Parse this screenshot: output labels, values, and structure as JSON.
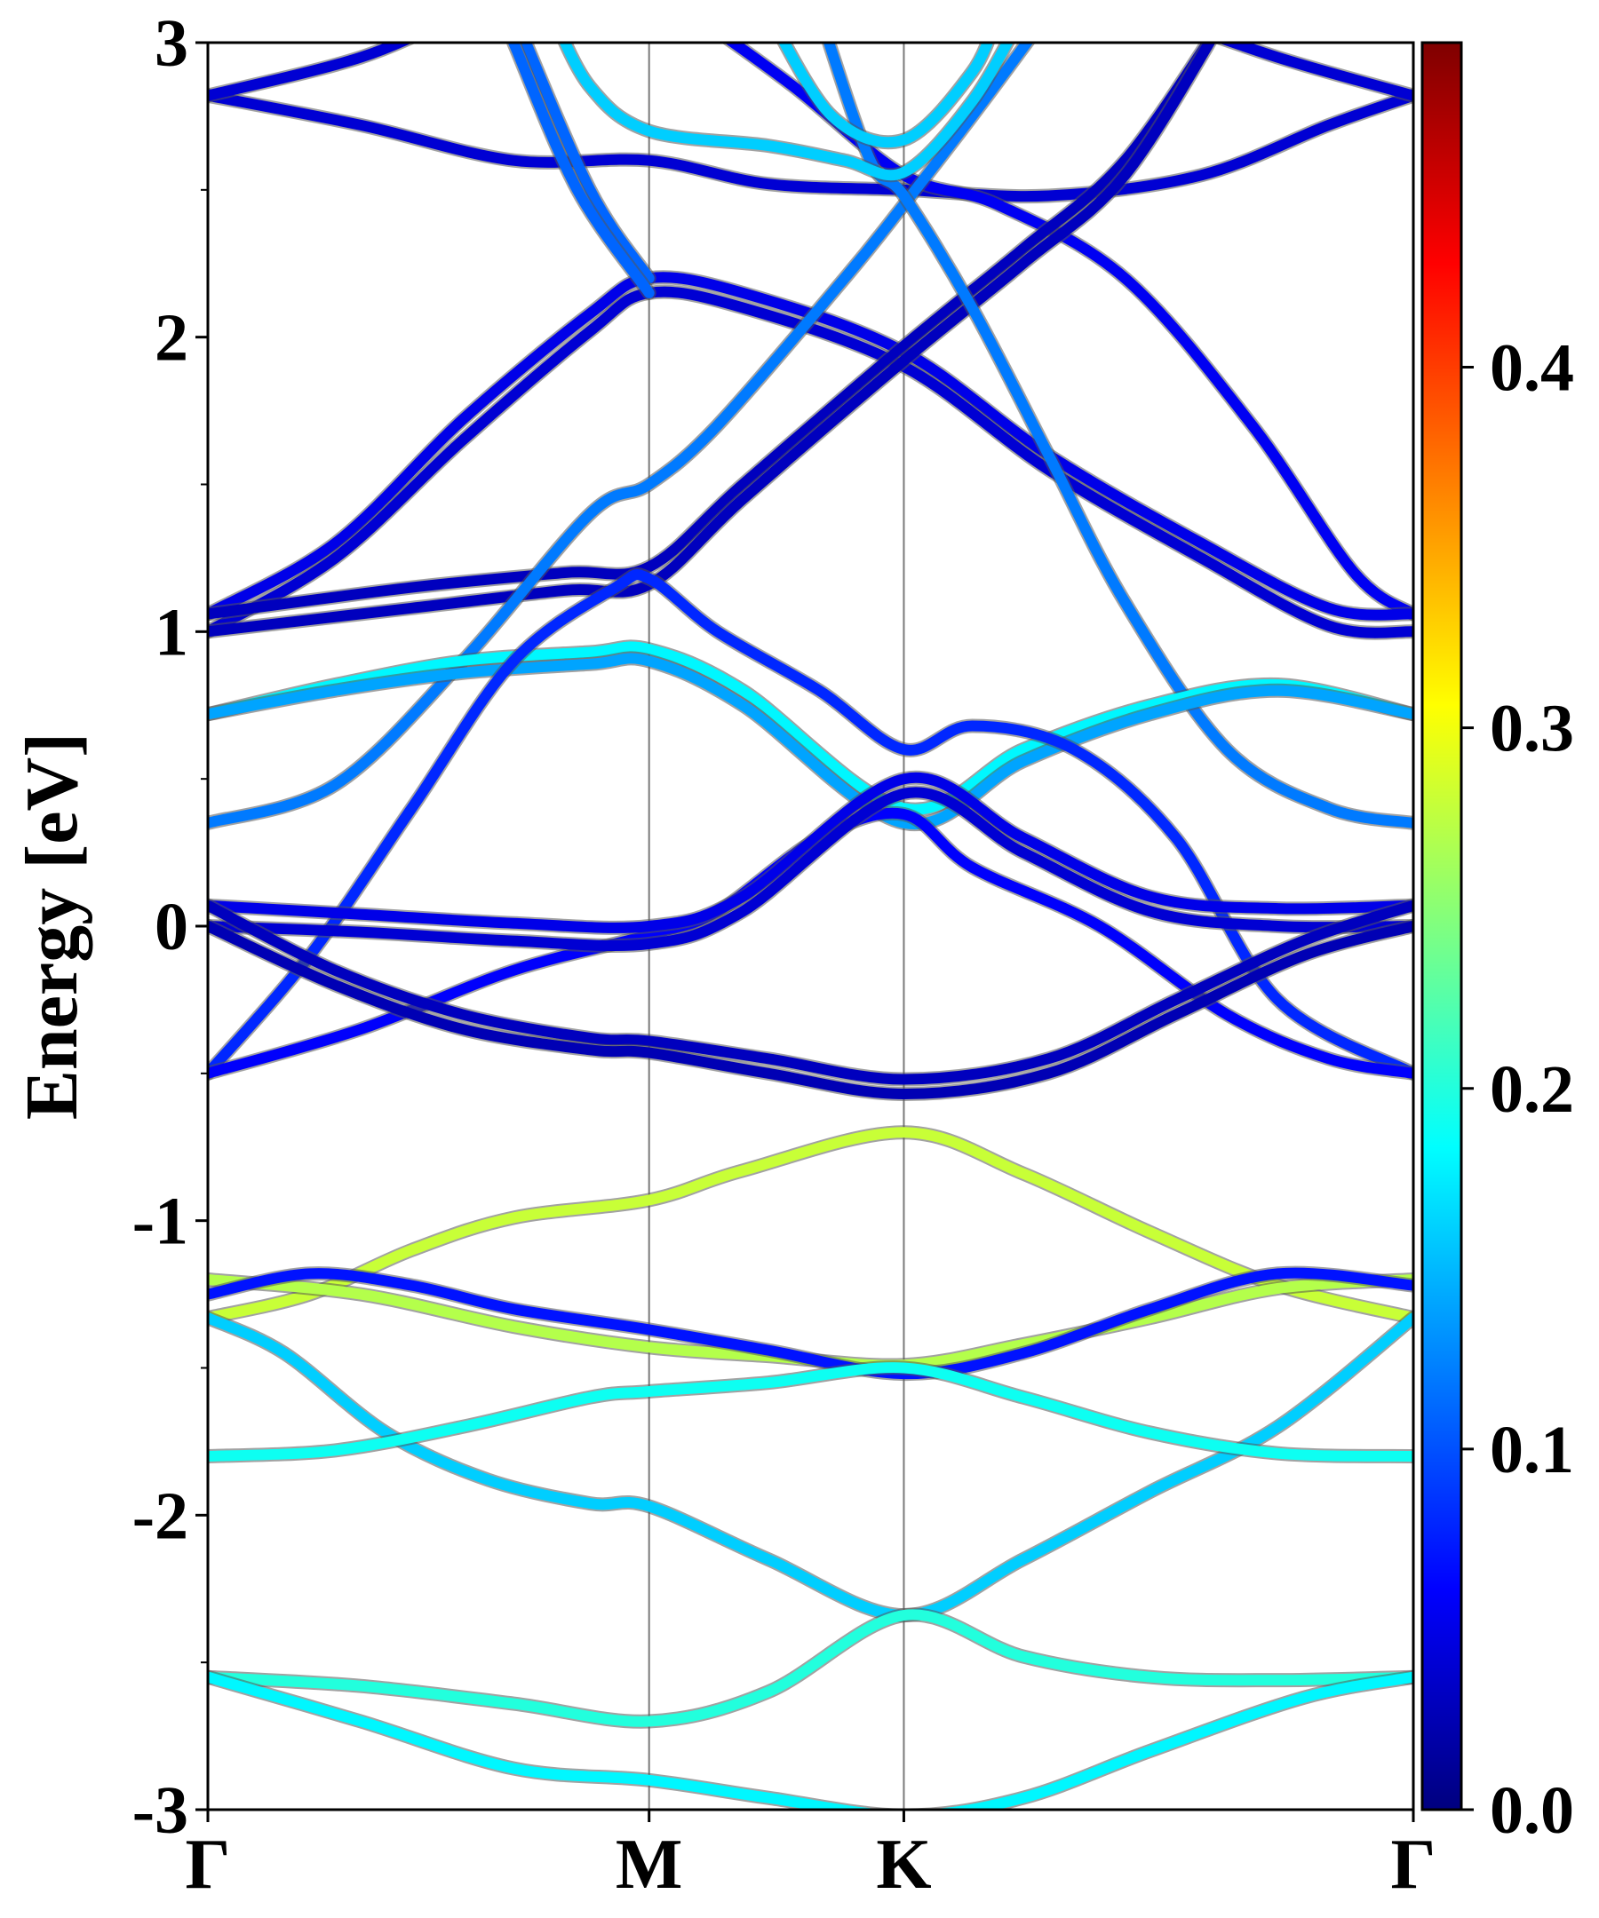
{
  "chart_data": {
    "type": "line",
    "title": "",
    "ylabel": "Energy [eV]",
    "xlabel": "",
    "ylim": [
      -3,
      3
    ],
    "x_ticks": [
      {
        "label": "Γ",
        "pos": 0.0
      },
      {
        "label": "M",
        "pos": 1.732
      },
      {
        "label": "K",
        "pos": 2.732
      },
      {
        "label": "Γ",
        "pos": 4.732
      }
    ],
    "y_ticks": [
      {
        "label": "3",
        "value": 3
      },
      {
        "label": "2",
        "value": 2
      },
      {
        "label": "1",
        "value": 1
      },
      {
        "label": "0",
        "value": 0
      },
      {
        "label": "-1",
        "value": -1
      },
      {
        "label": "-2",
        "value": -2
      },
      {
        "label": "-3",
        "value": -3
      }
    ],
    "y_minor_step": 0.5,
    "vertical_lines_at": [
      1.732,
      2.732
    ],
    "colorbar": {
      "colormap": "jet",
      "min": 0.0,
      "max": 0.49,
      "ticks": [
        {
          "label": "0.0",
          "value": 0.0
        },
        {
          "label": "0.1",
          "value": 0.1
        },
        {
          "label": "0.2",
          "value": 0.2
        },
        {
          "label": "0.3",
          "value": 0.3
        },
        {
          "label": "0.4",
          "value": 0.4
        }
      ]
    },
    "series": [
      {
        "weight": 0.04,
        "points": [
          [
            0,
            2.82
          ],
          [
            0.6,
            2.72
          ],
          [
            1.2,
            2.6
          ],
          [
            1.732,
            2.6
          ],
          [
            2.2,
            2.52
          ],
          [
            2.732,
            2.5
          ],
          [
            3.3,
            2.48
          ],
          [
            3.9,
            2.55
          ],
          [
            4.4,
            2.72
          ],
          [
            4.732,
            2.82
          ]
        ]
      },
      {
        "weight": 0.04,
        "points": [
          [
            0,
            2.82
          ],
          [
            0.6,
            2.95
          ],
          [
            1.0,
            3.1
          ]
        ]
      },
      {
        "weight": 0.04,
        "points": [
          [
            3.7,
            3.1
          ],
          [
            4.2,
            2.95
          ],
          [
            4.732,
            2.82
          ]
        ]
      },
      {
        "weight": 0.055,
        "points": [
          [
            1.9,
            3.1
          ],
          [
            2.3,
            2.85
          ],
          [
            2.732,
            2.55
          ],
          [
            3.1,
            2.45
          ],
          [
            3.6,
            2.2
          ],
          [
            4.1,
            1.7
          ],
          [
            4.5,
            1.2
          ],
          [
            4.732,
            1.06
          ]
        ]
      },
      {
        "weight": 0.05,
        "points": [
          [
            0,
            1.06
          ],
          [
            0.5,
            1.3
          ],
          [
            1.0,
            1.72
          ],
          [
            1.5,
            2.08
          ],
          [
            1.732,
            2.2
          ],
          [
            2.1,
            2.15
          ],
          [
            2.732,
            1.95
          ],
          [
            3.3,
            1.6
          ],
          [
            3.9,
            1.3
          ],
          [
            4.4,
            1.08
          ],
          [
            4.732,
            1.06
          ]
        ]
      },
      {
        "weight": 0.04,
        "points": [
          [
            0,
            1.0
          ],
          [
            0.5,
            1.25
          ],
          [
            1.0,
            1.65
          ],
          [
            1.5,
            2.02
          ],
          [
            1.732,
            2.15
          ],
          [
            2.1,
            2.1
          ],
          [
            2.732,
            1.9
          ],
          [
            3.3,
            1.55
          ],
          [
            3.9,
            1.25
          ],
          [
            4.4,
            1.02
          ],
          [
            4.732,
            1.0
          ]
        ]
      },
      {
        "weight": 0.03,
        "points": [
          [
            0,
            1.06
          ],
          [
            0.8,
            1.15
          ],
          [
            1.4,
            1.2
          ],
          [
            1.732,
            1.22
          ],
          [
            2.1,
            1.5
          ],
          [
            2.732,
            1.97
          ],
          [
            3.2,
            2.3
          ],
          [
            3.6,
            2.6
          ],
          [
            4.0,
            3.1
          ]
        ]
      },
      {
        "weight": 0.03,
        "points": [
          [
            0,
            1.0
          ],
          [
            0.8,
            1.08
          ],
          [
            1.4,
            1.14
          ],
          [
            1.732,
            1.16
          ],
          [
            2.1,
            1.45
          ],
          [
            2.732,
            1.92
          ],
          [
            3.2,
            2.25
          ],
          [
            3.6,
            2.55
          ],
          [
            4.0,
            3.1
          ]
        ]
      },
      {
        "weight": 0.12,
        "points": [
          [
            0,
            0.35
          ],
          [
            0.5,
            0.48
          ],
          [
            1.0,
            0.9
          ],
          [
            1.5,
            1.4
          ],
          [
            1.732,
            1.5
          ],
          [
            2.0,
            1.7
          ],
          [
            2.5,
            2.2
          ],
          [
            2.732,
            2.45
          ],
          [
            3.0,
            2.75
          ],
          [
            3.3,
            3.1
          ]
        ]
      },
      {
        "weight": 0.11,
        "points": [
          [
            1.2,
            3.1
          ],
          [
            1.5,
            2.5
          ],
          [
            1.732,
            2.2
          ]
        ]
      },
      {
        "weight": 0.11,
        "points": [
          [
            1.2,
            3.0
          ],
          [
            1.45,
            2.5
          ],
          [
            1.732,
            2.15
          ]
        ]
      },
      {
        "weight": 0.12,
        "points": [
          [
            2.4,
            3.1
          ],
          [
            2.6,
            2.6
          ],
          [
            2.732,
            2.48
          ],
          [
            3.0,
            2.1
          ],
          [
            3.3,
            1.6
          ],
          [
            3.6,
            1.1
          ],
          [
            4.0,
            0.6
          ],
          [
            4.4,
            0.4
          ],
          [
            4.732,
            0.35
          ]
        ]
      },
      {
        "weight": 0.16,
        "points": [
          [
            1.35,
            3.1
          ],
          [
            1.5,
            2.85
          ],
          [
            1.732,
            2.7
          ],
          [
            2.2,
            2.65
          ],
          [
            2.5,
            2.6
          ],
          [
            2.732,
            2.56
          ],
          [
            3.0,
            2.8
          ],
          [
            3.2,
            3.1
          ]
        ]
      },
      {
        "weight": 0.16,
        "points": [
          [
            2.2,
            3.1
          ],
          [
            2.45,
            2.75
          ],
          [
            2.732,
            2.67
          ],
          [
            3.0,
            2.9
          ],
          [
            3.1,
            3.1
          ]
        ]
      },
      {
        "weight": 0.18,
        "points": [
          [
            0,
            0.72
          ],
          [
            0.5,
            0.82
          ],
          [
            1.0,
            0.9
          ],
          [
            1.5,
            0.93
          ],
          [
            1.732,
            0.94
          ],
          [
            2.1,
            0.8
          ],
          [
            2.732,
            0.4
          ],
          [
            3.2,
            0.6
          ],
          [
            3.7,
            0.75
          ],
          [
            4.2,
            0.82
          ],
          [
            4.732,
            0.72
          ]
        ]
      },
      {
        "weight": 0.14,
        "points": [
          [
            0,
            0.72
          ],
          [
            0.5,
            0.8
          ],
          [
            1.0,
            0.86
          ],
          [
            1.5,
            0.89
          ],
          [
            1.732,
            0.9
          ],
          [
            2.1,
            0.75
          ],
          [
            2.732,
            0.35
          ],
          [
            3.2,
            0.56
          ],
          [
            3.7,
            0.72
          ],
          [
            4.2,
            0.8
          ],
          [
            4.732,
            0.72
          ]
        ]
      },
      {
        "weight": 0.08,
        "points": [
          [
            0,
            -0.5
          ],
          [
            0.4,
            -0.1
          ],
          [
            0.8,
            0.4
          ],
          [
            1.2,
            0.9
          ],
          [
            1.6,
            1.15
          ],
          [
            1.732,
            1.18
          ],
          [
            2.0,
            1.0
          ],
          [
            2.4,
            0.8
          ],
          [
            2.732,
            0.6
          ],
          [
            3.0,
            0.68
          ],
          [
            3.4,
            0.6
          ],
          [
            3.8,
            0.3
          ],
          [
            4.2,
            -0.25
          ],
          [
            4.732,
            -0.5
          ]
        ]
      },
      {
        "weight": 0.06,
        "points": [
          [
            0,
            -0.5
          ],
          [
            0.6,
            -0.35
          ],
          [
            1.2,
            -0.15
          ],
          [
            1.732,
            -0.03
          ],
          [
            2.0,
            0.05
          ],
          [
            2.4,
            0.3
          ],
          [
            2.732,
            0.38
          ],
          [
            3.0,
            0.2
          ],
          [
            3.5,
            0.0
          ],
          [
            4.0,
            -0.3
          ],
          [
            4.4,
            -0.45
          ],
          [
            4.732,
            -0.5
          ]
        ]
      },
      {
        "weight": 0.05,
        "points": [
          [
            0,
            0.07
          ],
          [
            0.6,
            0.04
          ],
          [
            1.2,
            0.01
          ],
          [
            1.732,
            0.0
          ],
          [
            2.1,
            0.1
          ],
          [
            2.732,
            0.5
          ],
          [
            3.2,
            0.3
          ],
          [
            3.7,
            0.1
          ],
          [
            4.2,
            0.06
          ],
          [
            4.732,
            0.07
          ]
        ]
      },
      {
        "weight": 0.04,
        "points": [
          [
            0,
            0.0
          ],
          [
            0.6,
            -0.02
          ],
          [
            1.2,
            -0.05
          ],
          [
            1.732,
            -0.06
          ],
          [
            2.1,
            0.05
          ],
          [
            2.732,
            0.45
          ],
          [
            3.2,
            0.25
          ],
          [
            3.7,
            0.05
          ],
          [
            4.2,
            0.0
          ],
          [
            4.732,
            0.0
          ]
        ]
      },
      {
        "weight": 0.03,
        "points": [
          [
            0,
            0.07
          ],
          [
            0.5,
            -0.15
          ],
          [
            1.0,
            -0.3
          ],
          [
            1.5,
            -0.38
          ],
          [
            1.732,
            -0.39
          ],
          [
            2.2,
            -0.45
          ],
          [
            2.732,
            -0.52
          ],
          [
            3.3,
            -0.45
          ],
          [
            3.8,
            -0.25
          ],
          [
            4.3,
            -0.05
          ],
          [
            4.732,
            0.07
          ]
        ]
      },
      {
        "weight": 0.025,
        "points": [
          [
            0,
            0.0
          ],
          [
            0.5,
            -0.2
          ],
          [
            1.0,
            -0.35
          ],
          [
            1.5,
            -0.42
          ],
          [
            1.732,
            -0.43
          ],
          [
            2.2,
            -0.5
          ],
          [
            2.732,
            -0.57
          ],
          [
            3.3,
            -0.5
          ],
          [
            3.8,
            -0.3
          ],
          [
            4.3,
            -0.1
          ],
          [
            4.732,
            0.0
          ]
        ]
      },
      {
        "weight": 0.28,
        "points": [
          [
            0,
            -1.33
          ],
          [
            0.4,
            -1.25
          ],
          [
            0.8,
            -1.1
          ],
          [
            1.2,
            -0.99
          ],
          [
            1.732,
            -0.93
          ],
          [
            2.1,
            -0.83
          ],
          [
            2.732,
            -0.7
          ],
          [
            3.2,
            -0.84
          ],
          [
            3.7,
            -1.04
          ],
          [
            4.2,
            -1.22
          ],
          [
            4.732,
            -1.33
          ]
        ]
      },
      {
        "weight": 0.27,
        "points": [
          [
            0,
            -1.2
          ],
          [
            0.6,
            -1.25
          ],
          [
            1.2,
            -1.36
          ],
          [
            1.732,
            -1.43
          ],
          [
            2.2,
            -1.46
          ],
          [
            2.732,
            -1.49
          ],
          [
            3.2,
            -1.42
          ],
          [
            3.7,
            -1.33
          ],
          [
            4.2,
            -1.23
          ],
          [
            4.732,
            -1.2
          ]
        ]
      },
      {
        "weight": 0.07,
        "points": [
          [
            0,
            -1.25
          ],
          [
            0.4,
            -1.18
          ],
          [
            0.8,
            -1.22
          ],
          [
            1.2,
            -1.3
          ],
          [
            1.732,
            -1.37
          ],
          [
            2.2,
            -1.44
          ],
          [
            2.732,
            -1.52
          ],
          [
            3.2,
            -1.45
          ],
          [
            3.7,
            -1.3
          ],
          [
            4.2,
            -1.18
          ],
          [
            4.732,
            -1.22
          ]
        ]
      },
      {
        "weight": 0.16,
        "points": [
          [
            0,
            -1.33
          ],
          [
            0.3,
            -1.45
          ],
          [
            0.7,
            -1.72
          ],
          [
            1.1,
            -1.88
          ],
          [
            1.5,
            -1.96
          ],
          [
            1.732,
            -1.97
          ],
          [
            2.2,
            -2.15
          ],
          [
            2.732,
            -2.34
          ],
          [
            3.2,
            -2.15
          ],
          [
            3.7,
            -1.92
          ],
          [
            4.2,
            -1.7
          ],
          [
            4.732,
            -1.33
          ]
        ]
      },
      {
        "weight": 0.19,
        "points": [
          [
            0,
            -1.8
          ],
          [
            0.5,
            -1.78
          ],
          [
            1.0,
            -1.7
          ],
          [
            1.5,
            -1.6
          ],
          [
            1.732,
            -1.58
          ],
          [
            2.2,
            -1.55
          ],
          [
            2.732,
            -1.5
          ],
          [
            3.2,
            -1.6
          ],
          [
            3.7,
            -1.72
          ],
          [
            4.2,
            -1.79
          ],
          [
            4.732,
            -1.8
          ]
        ]
      },
      {
        "weight": 0.2,
        "points": [
          [
            0,
            -2.55
          ],
          [
            0.6,
            -2.58
          ],
          [
            1.2,
            -2.64
          ],
          [
            1.732,
            -2.7
          ],
          [
            2.2,
            -2.6
          ],
          [
            2.732,
            -2.34
          ],
          [
            3.2,
            -2.48
          ],
          [
            3.7,
            -2.55
          ],
          [
            4.2,
            -2.56
          ],
          [
            4.732,
            -2.55
          ]
        ]
      },
      {
        "weight": 0.18,
        "points": [
          [
            0,
            -2.55
          ],
          [
            0.6,
            -2.7
          ],
          [
            1.2,
            -2.86
          ],
          [
            1.732,
            -2.9
          ],
          [
            2.2,
            -2.96
          ],
          [
            2.732,
            -3.02
          ],
          [
            3.2,
            -2.96
          ],
          [
            3.7,
            -2.8
          ],
          [
            4.3,
            -2.62
          ],
          [
            4.732,
            -2.55
          ]
        ]
      }
    ]
  }
}
